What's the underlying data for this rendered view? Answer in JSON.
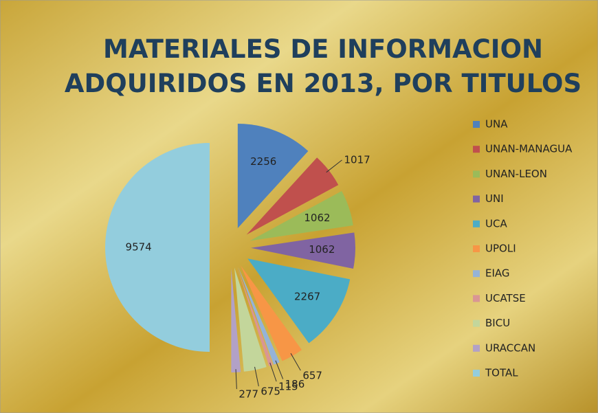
{
  "chart_data": {
    "type": "pie",
    "title": "MATERIALES DE INFORMACION ADQUIRIDOS EN 2013, POR TITULOS",
    "categories": [
      "UNA",
      "UNAN-MANAGUA",
      "UNAN-LEON",
      "UNI",
      "UCA",
      "UPOLI",
      "EIAG",
      "UCATSE",
      "BICU",
      "URACCAN",
      "TOTAL"
    ],
    "values": [
      2256,
      1017,
      1062,
      1062,
      2267,
      657,
      186,
      115,
      675,
      277,
      9574
    ],
    "colors": [
      "#4F81BD",
      "#C0504D",
      "#9BBB59",
      "#8064A2",
      "#4BACC6",
      "#F79646",
      "#95B3D7",
      "#D99694",
      "#C3D69B",
      "#B2A1C7",
      "#93CDDD"
    ],
    "legend": "right"
  }
}
